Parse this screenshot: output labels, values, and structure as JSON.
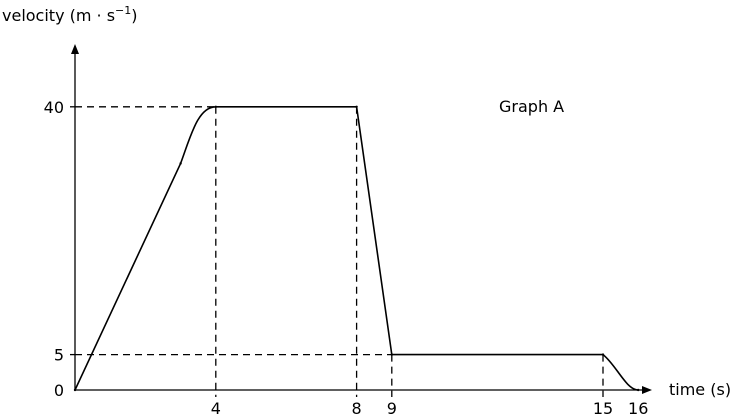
{
  "chart_data": {
    "type": "line",
    "title": "Graph A",
    "ylabel": {
      "main": "velocity (m · s",
      "exponent": "−1",
      "close": ")"
    },
    "xlabel": "time (s)",
    "x_ticks": [
      "0",
      "4",
      "8",
      "9",
      "15",
      "16"
    ],
    "y_ticks": [
      "0",
      "5",
      "40"
    ],
    "xlim": [
      0,
      16
    ],
    "ylim": [
      0,
      40
    ],
    "series": [
      {
        "points": [
          {
            "x": 0,
            "y": 0
          },
          {
            "x": 3,
            "y": 32
          },
          {
            "x": 4,
            "y": 40
          },
          {
            "x": 8,
            "y": 40
          },
          {
            "x": 9,
            "y": 5
          },
          {
            "x": 15,
            "y": 5
          },
          {
            "x": 16,
            "y": 0
          }
        ]
      }
    ],
    "guides": [
      {
        "x": 4,
        "y": 40
      },
      {
        "x": 8,
        "y": 40
      },
      {
        "x": 9,
        "y": 5
      },
      {
        "x": 15,
        "y": 5
      }
    ],
    "grid": false,
    "legend": "none"
  }
}
